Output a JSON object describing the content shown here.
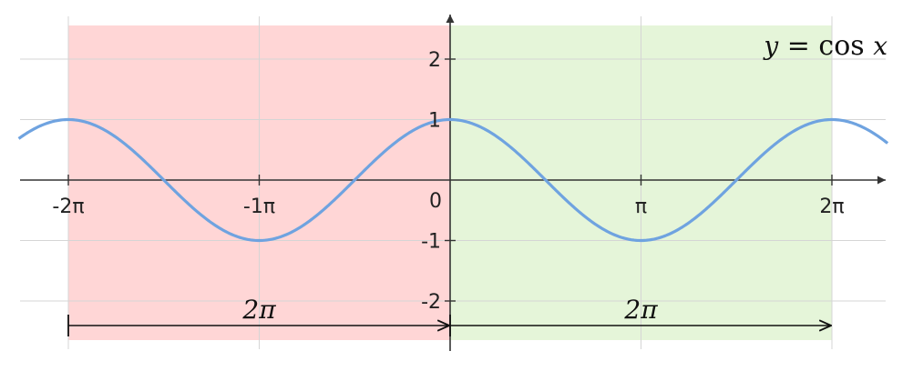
{
  "chart_data": {
    "type": "line",
    "function_label": "y = cos x",
    "function_parts": {
      "y": "y",
      "eq": " = ",
      "cos": "cos ",
      "x": "x"
    },
    "xlim": [
      -6.8,
      7.6
    ],
    "ylim": [
      -2.6,
      2.6
    ],
    "x_ticks": [
      {
        "value": -6.283185307,
        "label": "-2π"
      },
      {
        "value": -3.141592654,
        "label": "-1π"
      },
      {
        "value": 3.141592654,
        "label": "π"
      },
      {
        "value": 6.283185307,
        "label": "2π"
      }
    ],
    "origin_label": "0",
    "y_ticks": [
      {
        "value": 2,
        "label": "2"
      },
      {
        "value": 1,
        "label": "1"
      },
      {
        "value": -1,
        "label": "-1"
      },
      {
        "value": -2,
        "label": "-2"
      }
    ],
    "series": [
      {
        "function": "cos",
        "x_range": [
          -7.1,
          7.2
        ],
        "color": "#6fa3e0"
      }
    ],
    "regions": [
      {
        "x_range": [
          -6.283185307,
          0
        ],
        "color": "#ffd6d6"
      },
      {
        "x_range": [
          0,
          6.283185307
        ],
        "color": "#e5f5d9"
      }
    ],
    "period_arrows": [
      {
        "from": -6.283185307,
        "to": 0,
        "label": "2π"
      },
      {
        "from": 0,
        "to": 6.283185307,
        "label": "2π"
      }
    ],
    "grid": true,
    "axis_color": "#333333",
    "grid_color": "#d5d5d5"
  }
}
